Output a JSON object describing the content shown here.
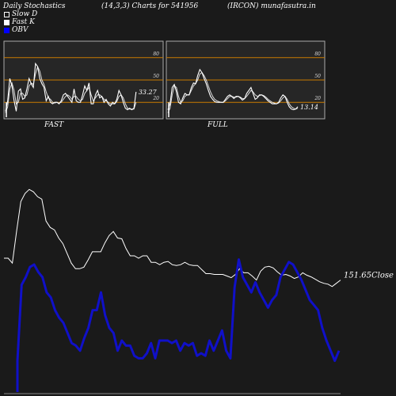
{
  "header": {
    "left": "Daily Stochastics",
    "center": "(14,3,3) Charts for 541956",
    "right": "(IRCON) munafasutra.in"
  },
  "legend": [
    {
      "label": "Slow  D",
      "color": "#ffffff",
      "style": "outline"
    },
    {
      "label": "Fast K",
      "color": "#ffffff",
      "style": "filled"
    },
    {
      "label": "OBV",
      "color": "#0000ff",
      "style": "filled"
    }
  ],
  "colors": {
    "background": "#1a1a1a",
    "panel_bg": "#262626",
    "level_line": "#c87a00",
    "obv": "#1010c8",
    "price": "#ffffff"
  },
  "chart_data": [
    {
      "type": "line",
      "title": "FAST",
      "ylim": [
        0,
        100
      ],
      "yticks": [
        20,
        50,
        80
      ],
      "levels": [
        20,
        80
      ],
      "value_label": "33.27",
      "series": [
        {
          "name": "Fast K",
          "values": [
            8,
            22,
            52,
            42,
            22,
            8,
            35,
            38,
            24,
            26,
            38,
            52,
            45,
            40,
            72,
            68,
            52,
            45,
            40,
            22,
            28,
            20,
            18,
            20,
            20,
            18,
            22,
            30,
            32,
            28,
            24,
            20,
            38,
            22,
            20,
            20,
            30,
            42,
            36,
            46,
            18,
            18,
            30,
            36,
            26,
            28,
            20,
            24,
            18,
            15,
            20,
            18,
            24,
            36,
            30,
            20,
            12,
            10,
            12,
            10,
            12,
            34
          ]
        },
        {
          "name": "Slow D",
          "values": [
            6,
            14,
            38,
            46,
            36,
            18,
            20,
            32,
            32,
            28,
            30,
            42,
            46,
            44,
            58,
            68,
            62,
            50,
            44,
            34,
            26,
            24,
            20,
            19,
            20,
            19,
            20,
            24,
            28,
            30,
            28,
            24,
            28,
            28,
            24,
            22,
            24,
            32,
            36,
            40,
            30,
            22,
            26,
            30,
            30,
            28,
            24,
            22,
            20,
            18,
            18,
            18,
            21,
            28,
            30,
            26,
            18,
            12,
            11,
            11,
            11,
            20
          ]
        }
      ]
    },
    {
      "type": "line",
      "title": "FULL",
      "ylim": [
        0,
        100
      ],
      "yticks": [
        20,
        50,
        80
      ],
      "levels": [
        20,
        80
      ],
      "value_label": "13.14",
      "series": [
        {
          "name": "Fast K",
          "values": [
            10,
            18,
            40,
            44,
            34,
            20,
            18,
            26,
            32,
            30,
            30,
            40,
            46,
            45,
            56,
            64,
            60,
            52,
            45,
            36,
            28,
            24,
            21,
            20,
            20,
            20,
            20,
            24,
            28,
            30,
            28,
            25,
            28,
            28,
            26,
            23,
            25,
            32,
            36,
            40,
            32,
            24,
            26,
            30,
            30,
            28,
            25,
            22,
            20,
            18,
            18,
            18,
            20,
            26,
            30,
            28,
            20,
            14,
            11,
            10,
            11,
            14
          ]
        },
        {
          "name": "Slow D",
          "values": [
            6,
            12,
            30,
            42,
            40,
            28,
            20,
            22,
            28,
            30,
            30,
            36,
            42,
            45,
            50,
            58,
            60,
            56,
            50,
            42,
            34,
            28,
            24,
            22,
            21,
            20,
            20,
            22,
            25,
            28,
            28,
            27,
            27,
            28,
            27,
            25,
            25,
            28,
            32,
            36,
            34,
            30,
            28,
            29,
            30,
            29,
            27,
            24,
            22,
            20,
            19,
            18,
            19,
            22,
            26,
            28,
            24,
            18,
            14,
            12,
            11,
            12
          ]
        }
      ]
    },
    {
      "type": "line",
      "title": "",
      "value_label": "151.65",
      "value_suffix": "Close",
      "series": [
        {
          "name": "Close",
          "values": [
            154.8,
            154.8,
            154.2,
            158.1,
            161.8,
            162.8,
            163.3,
            163.0,
            162.4,
            162.1,
            159.4,
            158.6,
            158.3,
            157.3,
            156.6,
            155.4,
            154.2,
            153.5,
            153.5,
            153.7,
            154.6,
            155.6,
            155.6,
            155.6,
            156.7,
            157.6,
            158.1,
            157.3,
            157.2,
            156.0,
            155.1,
            155.1,
            154.8,
            155.1,
            155.1,
            154.3,
            154.3,
            154.0,
            154.3,
            154.4,
            154.0,
            153.9,
            154.0,
            154.3,
            154.0,
            153.9,
            153.9,
            153.4,
            152.9,
            152.9,
            152.8,
            152.8,
            152.8,
            152.6,
            152.4,
            152.8,
            153.5,
            153.0,
            153.0,
            152.6,
            152.1,
            153.2,
            153.7,
            153.8,
            153.6,
            153.1,
            152.7,
            152.8,
            152.6,
            152.3,
            152.5,
            153.0,
            152.7,
            152.5,
            152.2,
            151.9,
            151.7,
            151.6,
            151.3,
            151.7,
            152.1
          ]
        },
        {
          "name": "OBV",
          "values": [
            33,
            63,
            66,
            70,
            71,
            68,
            66,
            60,
            58,
            53,
            50,
            48,
            44,
            40,
            39,
            37,
            42,
            46,
            53,
            53,
            60,
            51,
            46,
            44,
            37,
            41,
            39,
            39,
            35,
            34,
            34,
            36,
            40,
            34,
            41,
            41,
            41,
            40,
            41,
            37,
            40,
            39,
            40,
            35,
            36,
            35,
            41,
            37,
            41,
            45,
            37,
            34,
            62,
            73,
            66,
            63,
            60,
            64,
            60,
            57,
            54,
            57,
            59,
            66,
            69,
            72,
            71,
            68,
            65,
            61,
            57,
            55,
            53,
            46,
            41,
            37,
            33,
            37
          ]
        }
      ]
    }
  ]
}
